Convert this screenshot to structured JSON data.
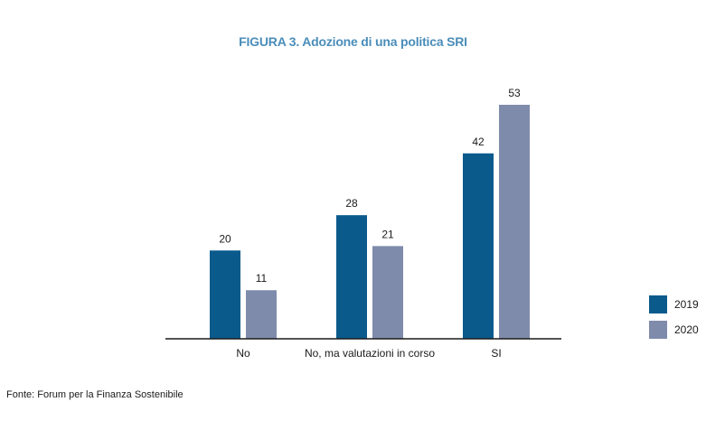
{
  "chart_data": {
    "type": "bar",
    "title": "FIGURA 3. Adozione di una politica SRI",
    "categories": [
      "No",
      "No, ma valutazioni in corso",
      "SI"
    ],
    "series": [
      {
        "name": "2019",
        "values": [
          20,
          28,
          42
        ],
        "color": "#0b5a8c"
      },
      {
        "name": "2020",
        "values": [
          11,
          21,
          53
        ],
        "color": "#7f8bab"
      }
    ],
    "ylim": [
      0,
      55
    ],
    "grid": false,
    "legend_position": "right"
  },
  "colors": {
    "title": "#4a8dba",
    "axis": "#1a1a1a"
  },
  "source": "Fonte: Forum per la Finanza Sostenibile"
}
